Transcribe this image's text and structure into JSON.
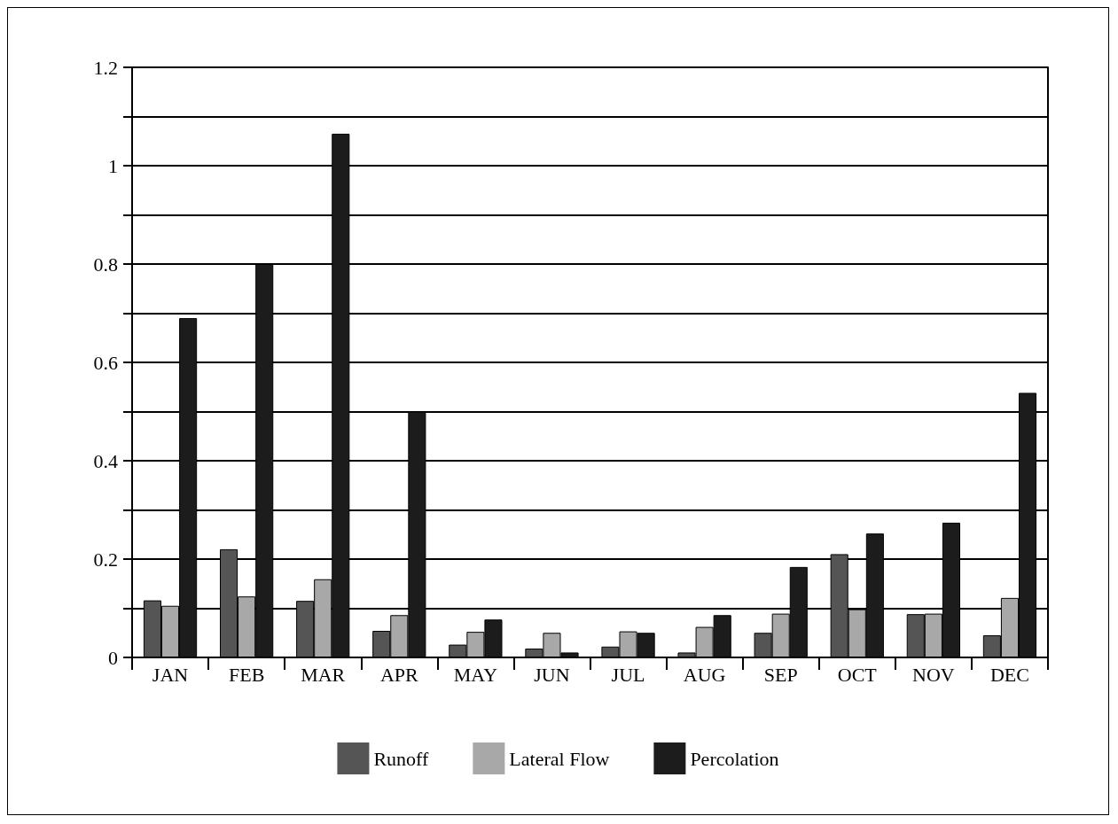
{
  "chart_data": {
    "type": "bar",
    "categories": [
      "JAN",
      "FEB",
      "MAR",
      "APR",
      "MAY",
      "JUN",
      "JUL",
      "AUG",
      "SEP",
      "OCT",
      "NOV",
      "DEC"
    ],
    "series": [
      {
        "name": "Runoff",
        "color": "#555555",
        "values": [
          0.116,
          0.22,
          0.115,
          0.054,
          0.026,
          0.018,
          0.022,
          0.01,
          0.05,
          0.21,
          0.088,
          0.045
        ]
      },
      {
        "name": "Lateral Flow",
        "color": "#a8a8a8",
        "values": [
          0.105,
          0.124,
          0.159,
          0.086,
          0.052,
          0.05,
          0.053,
          0.062,
          0.089,
          0.098,
          0.089,
          0.121
        ]
      },
      {
        "name": "Percolation",
        "color": "#1c1c1c",
        "values": [
          0.69,
          0.8,
          1.065,
          0.5,
          0.077,
          0.01,
          0.05,
          0.086,
          0.184,
          0.252,
          0.274,
          0.538
        ]
      }
    ],
    "ylim": [
      0,
      1.2
    ],
    "yticks": [
      0,
      {
        "value": 0.1,
        "label": null
      },
      0.2,
      {
        "value": 0.3,
        "label": null
      },
      0.4,
      {
        "value": 0.5,
        "label": null
      },
      0.6,
      {
        "value": 0.7,
        "label": null
      },
      0.8,
      {
        "value": 0.9,
        "label": null
      },
      1,
      {
        "value": 1.1,
        "label": null
      },
      1.2
    ],
    "grid": "y",
    "legend": "bottom"
  }
}
